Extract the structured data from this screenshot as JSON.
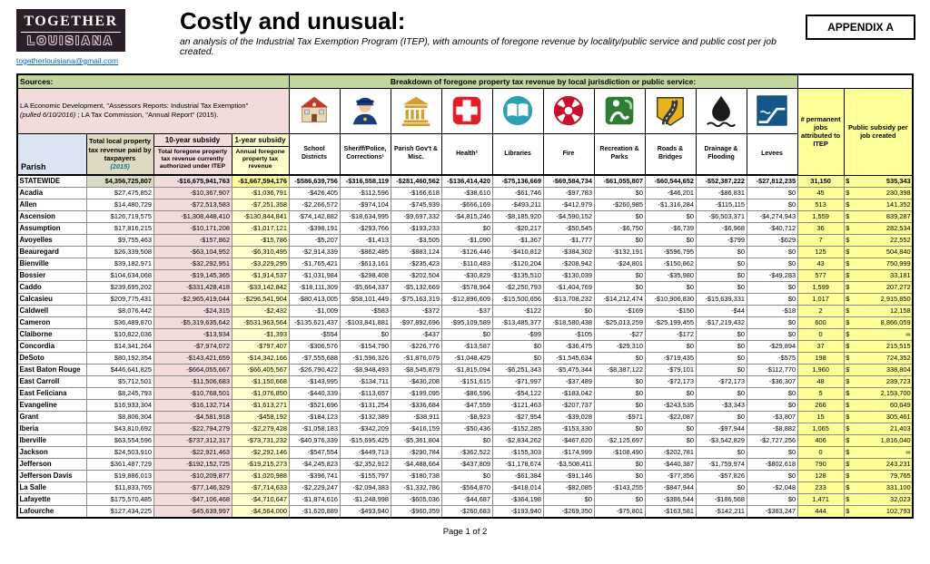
{
  "header": {
    "logo_line1": "TOGETHER",
    "logo_line2": "LOUISIANA",
    "email": "togetherlouisiana@gmail.com",
    "title": "Costly and unusual:",
    "subtitle": "an analysis of the Industrial Tax Exemption Program (ITEP), with amounts of foregone revenue by locality/public service and public cost per job created.",
    "appendix": "APPENDIX A"
  },
  "colors": {
    "green_header": "#C3D69B",
    "pink": "#F2DCDB",
    "yellow": "#FFFF99",
    "pale_yellow": "#FFFFCC",
    "light_blue": "#DBE5F1",
    "tan": "#DDD9C3",
    "link_blue": "#0563C1"
  },
  "table": {
    "sources_label": "Sources:",
    "sources_line1": "LA Economic Development, \"Assessors Reports: Industrial Tax Exemption\"",
    "sources_line2_italic": "(pulled 6/10/2016)",
    "sources_line2_rest": " ; LA Tax Commission, \"Annual Report\" (2015).",
    "breakdown_label": "Breakdown of foregone property tax revenue by local jurisdiction or public service:",
    "col_parish": "Parish",
    "col_total": "Total local property tax revenue paid by taxpayers",
    "col_total_year": "(2015)",
    "col_10yr_title": "10-year subsidy",
    "col_10yr_sub": "Total foregone property tax revenue currently authorized under ITEP",
    "col_1yr_title": "1-year subsidy",
    "col_1yr_sub": "Annual foregone property tax revenue",
    "col_jobs": "# permanent jobs attributed to ITEP",
    "col_subsidy": "Public subsidy per job created",
    "service_columns": [
      {
        "label": "School Districts",
        "icon": "school-icon"
      },
      {
        "label": "Sheriff/Police, Corrections¹",
        "icon": "police-icon"
      },
      {
        "label": "Parish Gov't & Misc.",
        "icon": "courthouse-icon"
      },
      {
        "label": "Health²",
        "icon": "health-cross-icon"
      },
      {
        "label": "Libraries",
        "icon": "book-icon"
      },
      {
        "label": "Fire",
        "icon": "fire-badge-icon"
      },
      {
        "label": "Recreation & Parks",
        "icon": "parks-icon"
      },
      {
        "label": "Roads & Bridges",
        "icon": "roads-icon"
      },
      {
        "label": "Drainage & Flooding",
        "icon": "drainage-icon"
      },
      {
        "label": "Levees",
        "icon": "levee-icon"
      }
    ],
    "rows": [
      {
        "parish": "STATEWIDE",
        "total": "$4,356,725,807",
        "ten_year": "-$16,675,941,763",
        "one_year": "-$1,667,594,176",
        "services": [
          "-$586,639,756",
          "-$316,558,119",
          "-$281,460,562",
          "-$136,414,420",
          "-$75,136,669",
          "-$69,584,734",
          "-$61,055,807",
          "-$60,544,652",
          "-$52,387,222",
          "-$27,812,235"
        ],
        "jobs": "31,150",
        "subsidy": "535,343"
      },
      {
        "parish": "Acadia",
        "total": "$27,475,852",
        "ten_year": "-$10,367,907",
        "one_year": "-$1,036,791",
        "services": [
          "-$426,405",
          "-$112,596",
          "-$166,618",
          "-$38,610",
          "-$61,746",
          "-$97,783",
          "$0",
          "-$46,201",
          "-$86,831",
          "$0"
        ],
        "jobs": "45",
        "subsidy": "230,398"
      },
      {
        "parish": "Allen",
        "total": "$14,480,729",
        "ten_year": "-$72,513,583",
        "one_year": "-$7,251,358",
        "services": [
          "-$2,266,572",
          "-$974,104",
          "-$745,939",
          "-$666,169",
          "-$493,211",
          "-$412,979",
          "-$260,985",
          "-$1,316,284",
          "-$115,115",
          "$0"
        ],
        "jobs": "513",
        "subsidy": "141,352"
      },
      {
        "parish": "Ascension",
        "total": "$126,719,575",
        "ten_year": "-$1,308,448,410",
        "one_year": "-$130,844,841",
        "services": [
          "-$74,142,882",
          "-$18,634,995",
          "-$9,697,332",
          "-$4,815,246",
          "-$8,185,920",
          "-$4,590,152",
          "$0",
          "$0",
          "-$6,503,371",
          "-$4,274,943"
        ],
        "jobs": "1,559",
        "subsidy": "839,287"
      },
      {
        "parish": "Assumption",
        "total": "$17,816,215",
        "ten_year": "-$10,171,208",
        "one_year": "-$1,017,121",
        "services": [
          "-$398,191",
          "-$293,766",
          "-$193,233",
          "$0",
          "-$20,217",
          "-$50,545",
          "-$6,750",
          "-$6,739",
          "-$6,968",
          "-$40,712"
        ],
        "jobs": "36",
        "subsidy": "282,534"
      },
      {
        "parish": "Avoyelles",
        "total": "$9,755,463",
        "ten_year": "-$157,862",
        "one_year": "-$15,786",
        "services": [
          "-$5,207",
          "-$1,413",
          "-$3,505",
          "-$1,090",
          "-$1,367",
          "-$1,777",
          "$0",
          "$0",
          "-$799",
          "-$629"
        ],
        "jobs": "7",
        "subsidy": "22,552"
      },
      {
        "parish": "Beauregard",
        "total": "$26,339,508",
        "ten_year": "-$63,104,952",
        "one_year": "-$6,310,495",
        "services": [
          "-$2,914,339",
          "-$862,485",
          "-$883,124",
          "-$126,446",
          "-$410,812",
          "-$384,302",
          "-$132,191",
          "-$596,795",
          "$0",
          "$0"
        ],
        "jobs": "125",
        "subsidy": "504,840"
      },
      {
        "parish": "Bienville",
        "total": "$39,182,971",
        "ten_year": "-$32,292,951",
        "one_year": "-$3,229,295",
        "services": [
          "-$1,765,421",
          "-$613,161",
          "-$235,423",
          "-$110,483",
          "-$120,204",
          "-$208,942",
          "-$24,801",
          "-$150,862",
          "$0",
          "$0"
        ],
        "jobs": "43",
        "subsidy": "750,999"
      },
      {
        "parish": "Bossier",
        "total": "$104,634,068",
        "ten_year": "-$19,145,365",
        "one_year": "-$1,914,537",
        "services": [
          "-$1,031,984",
          "-$298,408",
          "-$202,504",
          "-$30,829",
          "-$135,510",
          "-$130,039",
          "$0",
          "-$35,980",
          "$0",
          "-$49,283"
        ],
        "jobs": "577",
        "subsidy": "33,181"
      },
      {
        "parish": "Caddo",
        "total": "$239,695,202",
        "ten_year": "-$331,428,418",
        "one_year": "-$33,142,842",
        "services": [
          "-$18,111,309",
          "-$5,664,337",
          "-$5,132,669",
          "-$578,964",
          "-$2,250,793",
          "-$1,404,769",
          "$0",
          "$0",
          "$0",
          "$0"
        ],
        "jobs": "1,599",
        "subsidy": "207,272"
      },
      {
        "parish": "Calcasieu",
        "total": "$209,775,431",
        "ten_year": "-$2,965,419,044",
        "one_year": "-$296,541,904",
        "services": [
          "-$80,413,005",
          "-$58,101,449",
          "-$75,163,319",
          "-$12,896,609",
          "-$15,500,656",
          "-$13,708,232",
          "-$14,212,474",
          "-$10,906,830",
          "-$15,639,331",
          "$0"
        ],
        "jobs": "1,017",
        "subsidy": "2,915,850"
      },
      {
        "parish": "Caldwell",
        "total": "$8,076,442",
        "ten_year": "-$24,315",
        "one_year": "-$2,432",
        "services": [
          "-$1,009",
          "-$583",
          "-$372",
          "-$37",
          "-$122",
          "$0",
          "-$169",
          "-$150",
          "-$44",
          "-$18"
        ],
        "jobs": "2",
        "subsidy": "12,158"
      },
      {
        "parish": "Cameron",
        "total": "$36,489,870",
        "ten_year": "-$5,319,635,642",
        "one_year": "-$531,963,564",
        "services": [
          "-$135,621,437",
          "-$103,841,881",
          "-$97,892,696",
          "-$95,109,589",
          "-$13,485,377",
          "-$18,580,438",
          "-$25,013,259",
          "-$25,199,455",
          "-$17,219,432",
          "$0"
        ],
        "jobs": "600",
        "subsidy": "8,866,059"
      },
      {
        "parish": "Claiborne",
        "total": "$10,822,036",
        "ten_year": "-$13,934",
        "one_year": "-$1,393",
        "services": [
          "-$554",
          "$0",
          "-$437",
          "$0",
          "-$99",
          "-$105",
          "-$27",
          "-$172",
          "$0",
          "$0"
        ],
        "jobs": "0",
        "subsidy": "∞"
      },
      {
        "parish": "Concordia",
        "total": "$14,341,264",
        "ten_year": "-$7,974,072",
        "one_year": "-$797,407",
        "services": [
          "-$306,576",
          "-$154,790",
          "-$226,776",
          "-$13,587",
          "$0",
          "-$36,475",
          "-$29,310",
          "$0",
          "$0",
          "-$29,894"
        ],
        "jobs": "37",
        "subsidy": "215,515"
      },
      {
        "parish": "DeSoto",
        "total": "$80,192,354",
        "ten_year": "-$143,421,659",
        "one_year": "-$14,342,166",
        "services": [
          "-$7,555,688",
          "-$1,596,326",
          "-$1,876,079",
          "-$1,048,429",
          "$0",
          "-$1,545,634",
          "$0",
          "-$719,435",
          "$0",
          "-$575"
        ],
        "jobs": "198",
        "subsidy": "724,352"
      },
      {
        "parish": "East Baton Rouge",
        "total": "$446,641,825",
        "ten_year": "-$664,055,667",
        "one_year": "-$66,405,567",
        "services": [
          "-$26,790,422",
          "-$8,948,493",
          "-$8,545,879",
          "-$1,815,094",
          "-$6,251,343",
          "-$5,475,344",
          "-$8,387,122",
          "-$79,101",
          "$0",
          "-$112,770"
        ],
        "jobs": "1,960",
        "subsidy": "338,804"
      },
      {
        "parish": "East Carroll",
        "total": "$5,712,501",
        "ten_year": "-$11,506,683",
        "one_year": "-$1,150,668",
        "services": [
          "-$143,995",
          "-$134,711",
          "-$430,208",
          "-$151,615",
          "-$71,997",
          "-$37,489",
          "$0",
          "-$72,173",
          "-$72,173",
          "-$36,307"
        ],
        "jobs": "48",
        "subsidy": "239,723"
      },
      {
        "parish": "East Feliciana",
        "total": "$8,245,793",
        "ten_year": "-$10,768,501",
        "one_year": "-$1,076,850",
        "services": [
          "-$440,339",
          "-$113,657",
          "-$199,095",
          "-$86,596",
          "-$54,122",
          "-$183,042",
          "$0",
          "$0",
          "$0",
          "$0"
        ],
        "jobs": "5",
        "subsidy": "2,153,700"
      },
      {
        "parish": "Evangeline",
        "total": "$16,933,304",
        "ten_year": "-$16,132,714",
        "one_year": "-$1,613,271",
        "services": [
          "-$521,696",
          "-$131,254",
          "-$336,684",
          "-$47,559",
          "-$121,463",
          "-$207,737",
          "$0",
          "-$243,535",
          "-$3,343",
          "$0"
        ],
        "jobs": "266",
        "subsidy": "60,649"
      },
      {
        "parish": "Grant",
        "total": "$8,806,304",
        "ten_year": "-$4,581,918",
        "one_year": "-$458,192",
        "services": [
          "-$184,123",
          "-$132,389",
          "-$38,911",
          "-$8,923",
          "-$27,954",
          "-$39,028",
          "-$971",
          "-$22,087",
          "$0",
          "-$3,807"
        ],
        "jobs": "15",
        "subsidy": "305,461"
      },
      {
        "parish": "Iberia",
        "total": "$43,810,692",
        "ten_year": "-$22,794,279",
        "one_year": "-$2,279,428",
        "services": [
          "-$1,058,183",
          "-$342,209",
          "-$416,159",
          "-$50,436",
          "-$152,285",
          "-$153,330",
          "$0",
          "$0",
          "-$97,944",
          "-$8,882"
        ],
        "jobs": "1,065",
        "subsidy": "21,403"
      },
      {
        "parish": "Iberville",
        "total": "$63,554,596",
        "ten_year": "-$737,312,317",
        "one_year": "-$73,731,232",
        "services": [
          "-$40,976,339",
          "-$15,695,425",
          "-$5,361,804",
          "$0",
          "-$2,834,262",
          "-$467,620",
          "-$2,125,697",
          "$0",
          "-$3,542,829",
          "-$2,727,256"
        ],
        "jobs": "406",
        "subsidy": "1,816,040"
      },
      {
        "parish": "Jackson",
        "total": "$24,503,910",
        "ten_year": "-$22,921,463",
        "one_year": "-$2,292,146",
        "services": [
          "-$547,554",
          "-$449,713",
          "-$290,784",
          "-$362,522",
          "-$155,303",
          "-$174,999",
          "-$108,490",
          "-$202,781",
          "$0",
          "$0"
        ],
        "jobs": "0",
        "subsidy": "∞"
      },
      {
        "parish": "Jefferson",
        "total": "$361,487,729",
        "ten_year": "-$192,152,725",
        "one_year": "-$19,215,273",
        "services": [
          "-$4,245,823",
          "-$2,352,912",
          "-$4,488,664",
          "-$437,809",
          "-$1,178,674",
          "-$3,508,411",
          "$0",
          "-$440,387",
          "-$1,759,974",
          "-$802,618"
        ],
        "jobs": "790",
        "subsidy": "243,231"
      },
      {
        "parish": "Jefferson Davis",
        "total": "$19,886,013",
        "ten_year": "-$10,209,877",
        "one_year": "-$1,020,988",
        "services": [
          "-$396,741",
          "-$155,797",
          "-$180,738",
          "$0",
          "-$61,384",
          "-$91,146",
          "$0",
          "-$77,356",
          "-$57,826",
          "$0"
        ],
        "jobs": "128",
        "subsidy": "79,765"
      },
      {
        "parish": "La Salle",
        "total": "$11,833,765",
        "ten_year": "-$77,146,329",
        "one_year": "-$7,714,633",
        "services": [
          "-$2,229,247",
          "-$2,094,383",
          "-$1,332,786",
          "-$564,870",
          "-$418,014",
          "-$82,085",
          "-$143,255",
          "-$847,944",
          "$0",
          "-$2,048"
        ],
        "jobs": "233",
        "subsidy": "331,100"
      },
      {
        "parish": "Lafayette",
        "total": "$175,570,485",
        "ten_year": "-$47,106,468",
        "one_year": "-$4,710,647",
        "services": [
          "-$1,874,616",
          "-$1,248,998",
          "-$605,036",
          "-$44,687",
          "-$364,198",
          "$0",
          "$0",
          "-$386,544",
          "-$186,568",
          "$0"
        ],
        "jobs": "1,471",
        "subsidy": "32,023"
      },
      {
        "parish": "Lafourche",
        "total": "$127,434,225",
        "ten_year": "-$45,639,997",
        "one_year": "-$4,564,000",
        "services": [
          "-$1,620,889",
          "-$493,940",
          "-$960,359",
          "-$260,683",
          "-$193,940",
          "-$269,350",
          "-$75,801",
          "-$163,581",
          "-$142,211",
          "-$383,247"
        ],
        "jobs": "444",
        "subsidy": "102,793"
      }
    ]
  },
  "footer": {
    "page": "Page 1 of 2"
  }
}
